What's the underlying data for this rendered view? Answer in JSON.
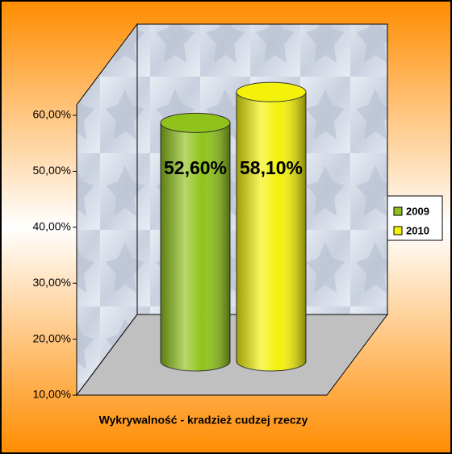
{
  "chart_data": {
    "type": "bar",
    "categories": [
      "Wykrywalność - kradzież cudzej rzeczy"
    ],
    "series": [
      {
        "name": "2009",
        "color": "#8fc21a",
        "values": [
          52.6
        ],
        "value_labels": [
          "52,60%"
        ]
      },
      {
        "name": "2010",
        "color": "#f4f20a",
        "values": [
          58.1
        ],
        "value_labels": [
          "58,10%"
        ]
      }
    ],
    "ylim": [
      10,
      60
    ],
    "yticks": [
      {
        "value": 10,
        "label": "10,00%"
      },
      {
        "value": 20,
        "label": "20,00%"
      },
      {
        "value": 30,
        "label": "30,00%"
      },
      {
        "value": 40,
        "label": "40,00%"
      },
      {
        "value": 50,
        "label": "50,00%"
      },
      {
        "value": 60,
        "label": "60,00%"
      }
    ]
  }
}
